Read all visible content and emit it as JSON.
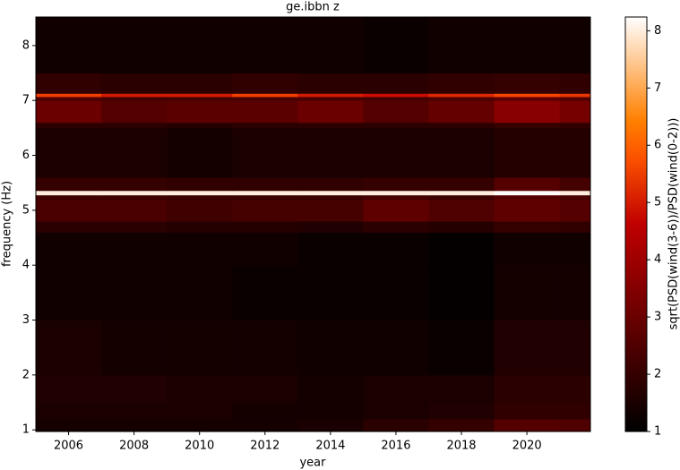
{
  "chart_data": {
    "type": "heatmap",
    "title": "ge.ibbn z",
    "xlabel": "year",
    "ylabel": "frequency (Hz)",
    "x_edges": [
      2005,
      2007,
      2009,
      2011,
      2013,
      2015,
      2017,
      2019,
      2021,
      2021.94
    ],
    "y_edges": [
      0.97,
      1.2,
      1.5,
      2,
      3,
      4,
      4.6,
      4.8,
      5.2,
      5.28,
      5.36,
      5.6,
      6.5,
      6.6,
      7.0,
      7.07,
      7.13,
      7.5,
      8.52
    ],
    "values": [
      [
        1.4,
        1.4,
        1.4,
        1.4,
        1.5,
        1.8,
        2.0,
        2.6,
        2.5
      ],
      [
        1.5,
        1.5,
        1.5,
        1.4,
        1.4,
        1.5,
        1.6,
        1.9,
        1.9
      ],
      [
        1.6,
        1.6,
        1.5,
        1.5,
        1.4,
        1.5,
        1.5,
        1.8,
        1.8
      ],
      [
        1.5,
        1.4,
        1.4,
        1.4,
        1.3,
        1.3,
        1.2,
        1.6,
        1.6
      ],
      [
        1.3,
        1.3,
        1.3,
        1.2,
        1.2,
        1.2,
        1.1,
        1.4,
        1.4
      ],
      [
        1.3,
        1.3,
        1.3,
        1.3,
        1.2,
        1.2,
        1.1,
        1.3,
        1.3
      ],
      [
        1.8,
        1.8,
        1.7,
        1.7,
        1.6,
        1.8,
        1.7,
        2.0,
        1.9
      ],
      [
        2.4,
        2.4,
        2.2,
        2.3,
        2.3,
        2.8,
        2.5,
        2.8,
        2.6
      ],
      [
        2.2,
        2.2,
        2.1,
        2.1,
        2.1,
        2.3,
        2.2,
        2.6,
        2.4
      ],
      [
        8,
        8,
        8,
        8,
        8,
        8,
        8,
        8.2,
        8
      ],
      [
        2.0,
        2.0,
        1.9,
        1.9,
        1.9,
        2.0,
        2.0,
        2.6,
        2.3
      ],
      [
        1.5,
        1.5,
        1.4,
        1.5,
        1.5,
        1.5,
        1.5,
        1.7,
        1.7
      ],
      [
        1.8,
        1.8,
        1.7,
        1.8,
        1.8,
        1.8,
        1.8,
        2.0,
        1.9
      ],
      [
        3.0,
        2.6,
        2.7,
        2.7,
        3.0,
        2.6,
        2.9,
        3.6,
        3.2
      ],
      [
        2.5,
        2.3,
        2.3,
        2.4,
        2.4,
        2.3,
        2.5,
        2.8,
        2.6
      ],
      [
        5.5,
        5.0,
        5.0,
        5.5,
        5.0,
        4.8,
        5.2,
        5.6,
        5.4
      ],
      [
        1.9,
        1.8,
        1.8,
        1.9,
        1.8,
        1.8,
        1.9,
        2.0,
        1.9
      ],
      [
        1.3,
        1.3,
        1.3,
        1.3,
        1.3,
        1.2,
        1.3,
        1.3,
        1.3
      ]
    ],
    "xlim": [
      2005,
      2021.94
    ],
    "ylim": [
      0.97,
      8.52
    ],
    "xticks": [
      2006,
      2008,
      2010,
      2012,
      2014,
      2016,
      2018,
      2020
    ],
    "yticks": [
      1,
      2,
      3,
      4,
      5,
      6,
      7,
      8
    ],
    "colormap": "gist_heat",
    "colorbar": {
      "label": "sqrt(PSD(wind(3-6))/PSD(wind(0-2)))",
      "clim": [
        1,
        8.24
      ],
      "ticks": [
        1,
        2,
        3,
        4,
        5,
        6,
        7,
        8
      ]
    }
  }
}
